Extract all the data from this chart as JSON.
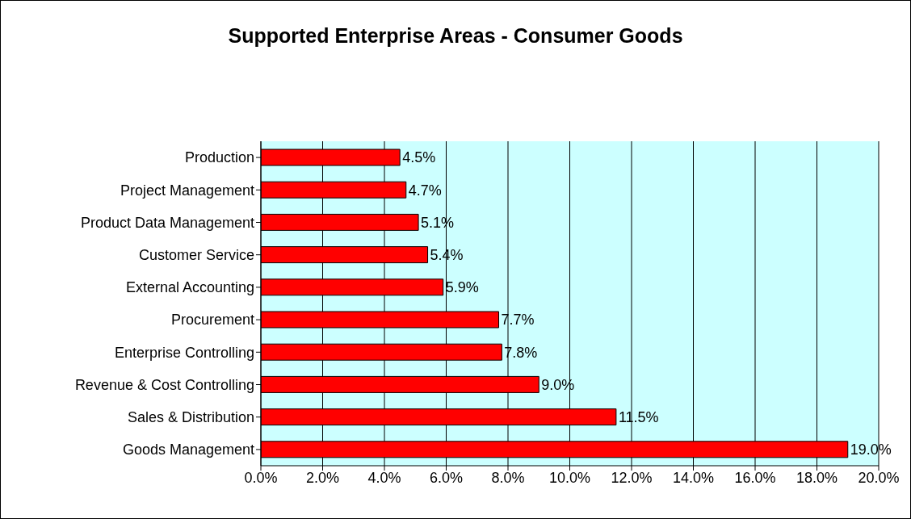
{
  "chart_data": {
    "type": "bar",
    "orientation": "horizontal",
    "title": "Supported Enterprise Areas - Consumer Goods",
    "categories": [
      "Production",
      "Project Management",
      "Product Data Management",
      "Customer Service",
      "External Accounting",
      "Procurement",
      "Enterprise Controlling",
      "Revenue & Cost Controlling",
      "Sales & Distribution",
      "Goods Management"
    ],
    "values": [
      4.5,
      4.7,
      5.1,
      5.4,
      5.9,
      7.7,
      7.8,
      9.0,
      11.5,
      19.0
    ],
    "value_labels": [
      "4.5%",
      "4.7%",
      "5.1%",
      "5.4%",
      "5.9%",
      "7.7%",
      "7.8%",
      "9.0%",
      "11.5%",
      "19.0%"
    ],
    "color": "#ff0000",
    "xlim": [
      0,
      20
    ],
    "xticks": [
      {
        "value": 0,
        "label": "0.0%"
      },
      {
        "value": 2,
        "label": "2.0%"
      },
      {
        "value": 4,
        "label": "4.0%"
      },
      {
        "value": 6,
        "label": "6.0%"
      },
      {
        "value": 8,
        "label": "8.0%"
      },
      {
        "value": 10,
        "label": "10.0%"
      },
      {
        "value": 12,
        "label": "12.0%"
      },
      {
        "value": 14,
        "label": "14.0%"
      },
      {
        "value": 16,
        "label": "16.0%"
      },
      {
        "value": 18,
        "label": "18.0%"
      },
      {
        "value": 20,
        "label": "20.0%"
      }
    ],
    "grid": "x"
  }
}
